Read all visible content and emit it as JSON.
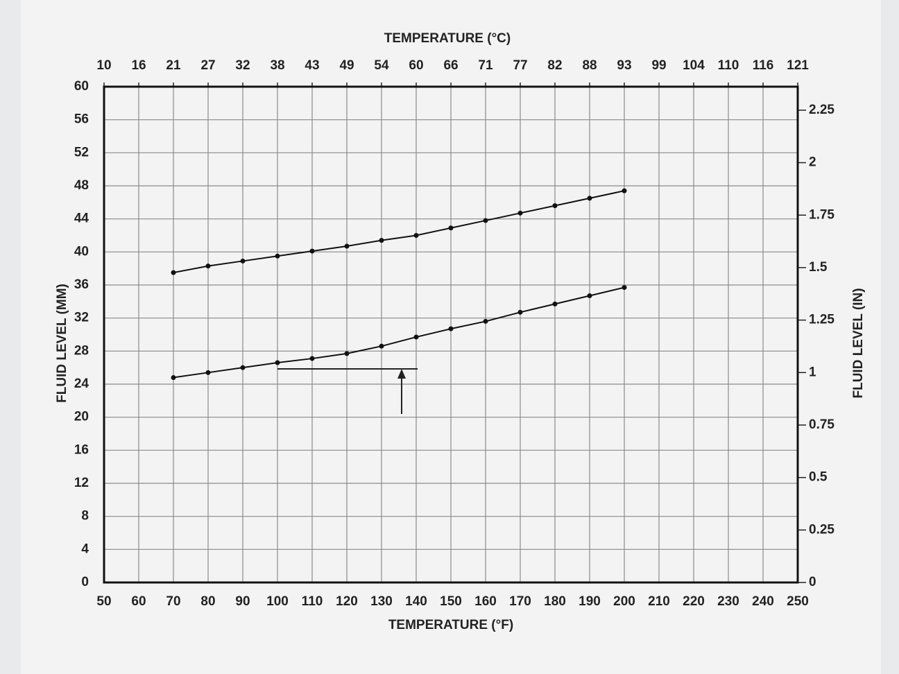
{
  "chart_data": {
    "type": "line",
    "xlabel": "TEMPERATURE (°F)",
    "x2label": "TEMPERATURE (°C)",
    "ylabel": "FLUID LEVEL (MM)",
    "y2label": "FLUID LEVEL (IN)",
    "x": [
      70,
      80,
      90,
      100,
      110,
      120,
      130,
      140,
      150,
      160,
      170,
      180,
      190,
      200
    ],
    "series": [
      {
        "color": "#111111",
        "values": [
          37.5,
          38.3,
          38.9,
          39.5,
          40.1,
          40.7,
          41.4,
          42.0,
          42.9,
          43.8,
          44.7,
          45.6,
          46.5,
          47.4
        ]
      },
      {
        "color": "#111111",
        "values": [
          24.8,
          25.4,
          26.0,
          26.6,
          27.1,
          27.7,
          28.6,
          29.7,
          30.7,
          31.6,
          32.7,
          33.7,
          34.7,
          35.7
        ]
      }
    ],
    "xlim": [
      50,
      250
    ],
    "xticks": [
      50,
      60,
      70,
      80,
      90,
      100,
      110,
      120,
      130,
      140,
      150,
      160,
      170,
      180,
      190,
      200,
      210,
      220,
      230,
      240,
      250
    ],
    "x2lim": [
      10,
      121.11
    ],
    "x2ticks": [
      10,
      {
        "value": 15.56,
        "label": "16"
      },
      {
        "value": 21.11,
        "label": "21"
      },
      {
        "value": 26.67,
        "label": "27"
      },
      {
        "value": 32.22,
        "label": "32"
      },
      {
        "value": 37.78,
        "label": "38"
      },
      {
        "value": 43.33,
        "label": "43"
      },
      {
        "value": 48.89,
        "label": "49"
      },
      {
        "value": 54.44,
        "label": "54"
      },
      60,
      {
        "value": 65.56,
        "label": "66"
      },
      {
        "value": 71.11,
        "label": "71"
      },
      {
        "value": 76.67,
        "label": "77"
      },
      {
        "value": 82.22,
        "label": "82"
      },
      {
        "value": 87.78,
        "label": "88"
      },
      {
        "value": 93.33,
        "label": "93"
      },
      {
        "value": 98.89,
        "label": "99"
      },
      {
        "value": 104.44,
        "label": "104"
      },
      110,
      {
        "value": 115.56,
        "label": "116"
      },
      {
        "value": 121.11,
        "label": "121"
      }
    ],
    "ylim": [
      0,
      60
    ],
    "yticks": [
      0,
      4,
      8,
      12,
      16,
      20,
      24,
      28,
      32,
      36,
      40,
      44,
      48,
      52,
      56,
      60
    ],
    "y2lim": [
      0,
      2.362
    ],
    "y2ticks": [
      0,
      0.25,
      0.5,
      0.75,
      1,
      1.25,
      1.5,
      1.75,
      2,
      2.25
    ],
    "grid": true
  }
}
